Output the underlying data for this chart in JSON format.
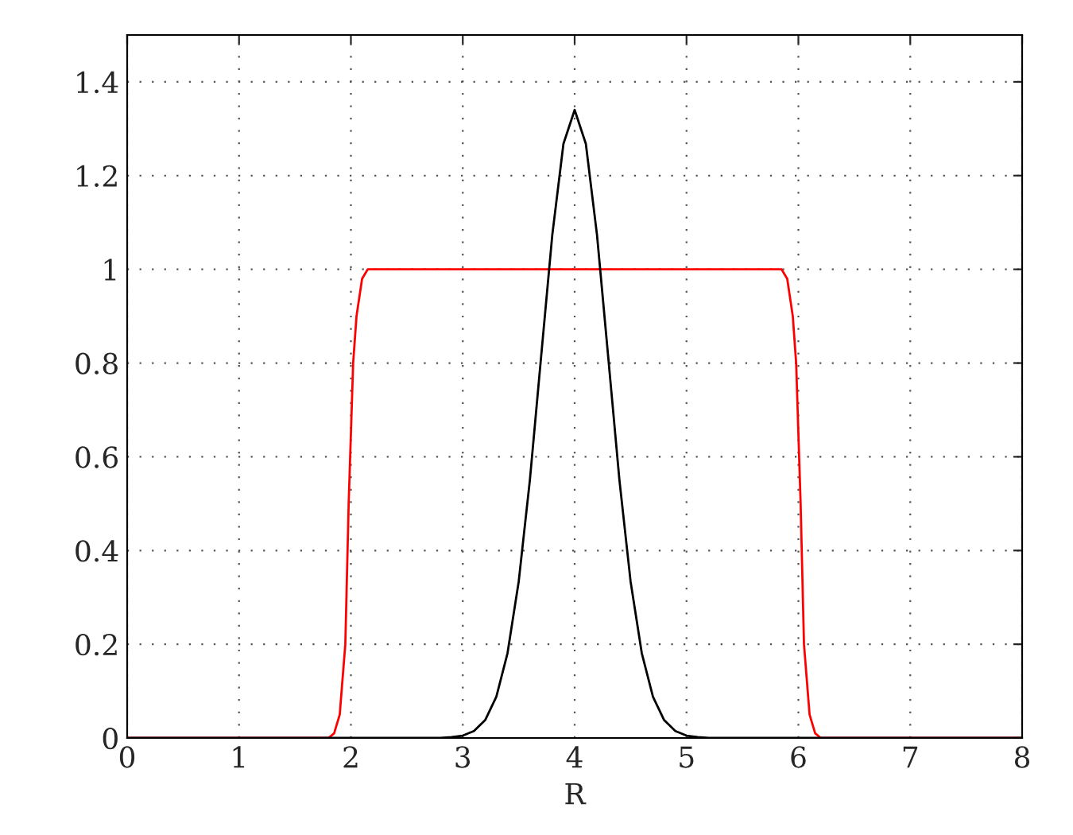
{
  "chart_data": {
    "type": "line",
    "xlabel": "R",
    "xlim": [
      0,
      8
    ],
    "xticks": [
      0,
      1,
      2,
      3,
      4,
      5,
      6,
      7,
      8
    ],
    "ylim": [
      0,
      1.5
    ],
    "yticks": [
      0,
      0.2,
      0.4,
      0.6,
      0.8,
      1,
      1.2,
      1.4
    ],
    "grid": true,
    "line_style": "solid",
    "marker": "none",
    "series": [
      {
        "color": "#ff0000",
        "x": [
          0,
          1.8,
          1.85,
          1.9,
          1.95,
          1.98,
          2.02,
          2.05,
          2.1,
          2.15,
          5.85,
          5.9,
          5.95,
          5.98,
          6.02,
          6.05,
          6.1,
          6.15,
          6.2,
          8
        ],
        "values": [
          0,
          0,
          0.01,
          0.05,
          0.2,
          0.5,
          0.8,
          0.9,
          0.98,
          1,
          1,
          0.98,
          0.9,
          0.8,
          0.5,
          0.2,
          0.05,
          0.01,
          0,
          0
        ]
      },
      {
        "color": "#000000",
        "x": [
          0,
          2.8,
          2.9,
          3.0,
          3.1,
          3.2,
          3.3,
          3.4,
          3.5,
          3.6,
          3.7,
          3.8,
          3.9,
          4.0,
          4.1,
          4.2,
          4.3,
          4.4,
          4.5,
          4.6,
          4.7,
          4.8,
          4.9,
          5.0,
          5.1,
          5.2,
          8
        ],
        "values": [
          0,
          0,
          0.002,
          0.005,
          0.015,
          0.038,
          0.088,
          0.181,
          0.334,
          0.551,
          0.813,
          1.073,
          1.268,
          1.34,
          1.268,
          1.073,
          0.813,
          0.551,
          0.334,
          0.181,
          0.088,
          0.038,
          0.015,
          0.005,
          0.002,
          0,
          0
        ]
      }
    ]
  }
}
